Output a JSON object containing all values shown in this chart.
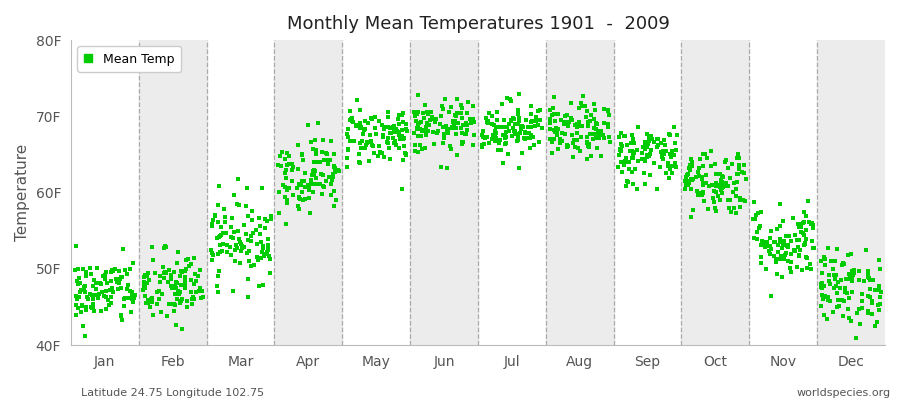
{
  "title": "Monthly Mean Temperatures 1901  -  2009",
  "ylabel": "Temperature",
  "xlabel_months": [
    "Jan",
    "Feb",
    "Mar",
    "Apr",
    "May",
    "Jun",
    "Jul",
    "Aug",
    "Sep",
    "Oct",
    "Nov",
    "Dec"
  ],
  "ylim": [
    40,
    80
  ],
  "yticks": [
    40,
    50,
    60,
    70,
    80
  ],
  "ytick_labels": [
    "40F",
    "50F",
    "60F",
    "70F",
    "80F"
  ],
  "dot_color": "#00cc00",
  "dot_size": 5,
  "legend_label": "Mean Temp",
  "bottom_left_text": "Latitude 24.75 Longitude 102.75",
  "bottom_right_text": "worldspecies.org",
  "background_color": "#ffffff",
  "band_color": "#ececec",
  "monthly_mean_f": [
    47.0,
    47.5,
    54.0,
    62.5,
    67.5,
    68.5,
    68.5,
    68.0,
    65.0,
    61.5,
    53.5,
    47.5
  ],
  "monthly_std_f": [
    2.2,
    2.5,
    2.8,
    2.5,
    2.0,
    1.8,
    1.8,
    1.8,
    2.0,
    2.2,
    2.5,
    2.5
  ],
  "n_years": 109,
  "seed": 42
}
